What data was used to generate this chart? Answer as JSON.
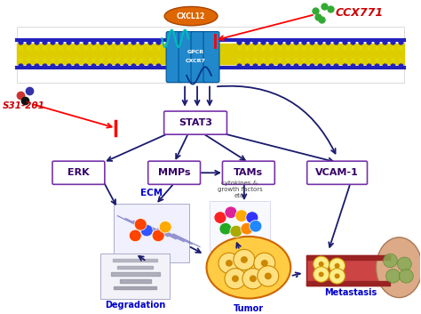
{
  "bg_color": "#ffffff",
  "receptor_label": "GPCR\nCXCR7",
  "ligand_label": "CXCL12",
  "ligand_color": "#dd6600",
  "ccx771_label": "CCX771",
  "ccx771_color": "#cc0000",
  "ccx771_dots_color": "#33aa33",
  "s31201_label": "S31-201",
  "s31201_color": "#cc0000",
  "stat3_label": "STAT3",
  "erk_label": "ERK",
  "mmps_label": "MMPs",
  "tams_label": "TAMs",
  "vcam1_label": "VCAM-1",
  "ecm_label": "ECM",
  "cytokines_label": "cytokines &\ngrowth factors\netc.",
  "degradation_label": "Degradation",
  "tumor_label": "Tumor",
  "metastasis_label": "Metastasis",
  "box_edge_color": "#7733aa",
  "box_face_color": "#ffffff",
  "arrow_color": "#1a1a6e",
  "text_color": "#330066",
  "ecm_text_color": "#0000cc",
  "blue_text_color": "#0000cc",
  "mem_outer_color": "#2222bb",
  "mem_inner_color": "#ddcc00",
  "receptor_color": "#2288cc",
  "receptor_edge": "#005599"
}
